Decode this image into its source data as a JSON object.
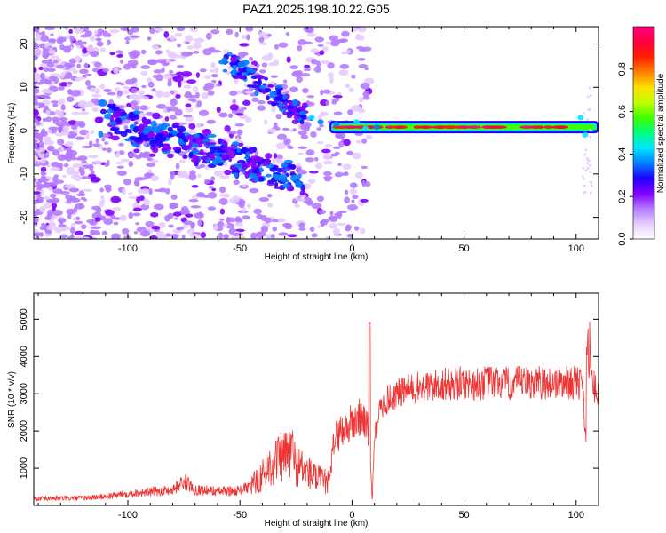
{
  "title": "PAZ1.2025.198.10.22.G05",
  "chart_data": [
    {
      "type": "heatmap",
      "xlabel": "Height of straight line (km)",
      "ylabel": "Frequency (Hz)",
      "xlim": [
        -142,
        110
      ],
      "ylim": [
        -25,
        24
      ],
      "xticks": [
        -100,
        -50,
        0,
        50,
        100
      ],
      "yticks": [
        -20,
        -10,
        0,
        10,
        20
      ],
      "colorbar": {
        "label": "Normalized spectral amplitude",
        "range": [
          0,
          1
        ],
        "ticks": [
          "0.0",
          "0.2",
          "0.4",
          "0.6",
          "0.8"
        ],
        "colors": [
          "#ffffff",
          "#e6ccff",
          "#b57bff",
          "#8000ff",
          "#2000ff",
          "#0080ff",
          "#00e5ff",
          "#00ff80",
          "#40ff00",
          "#c0ff00",
          "#ffe000",
          "#ff8000",
          "#ff2000",
          "#ff0040",
          "#ff0080"
        ]
      },
      "features": [
        {
          "name": "tone",
          "x_range": [
            -10,
            110
          ],
          "frequency": 0.8
        },
        {
          "name": "upper branch",
          "x_start": -55,
          "f_start": 16,
          "x_end": -20,
          "f_end": 3
        },
        {
          "name": "lower branch",
          "x_start": -110,
          "f_start": 3,
          "x_end": -25,
          "f_end": -11
        }
      ]
    },
    {
      "type": "line",
      "xlabel": "Height of straight line (km)",
      "ylabel": "SNR (10 * v/v)",
      "xlim": [
        -142,
        110
      ],
      "ylim": [
        0,
        5700
      ],
      "xticks": [
        -100,
        -50,
        0,
        50,
        100
      ],
      "yticks": [
        1000,
        2000,
        3000,
        4000,
        5000
      ],
      "color": "#ee3333",
      "x": [
        -142,
        -130,
        -120,
        -110,
        -100,
        -90,
        -80,
        -75,
        -70,
        -60,
        -50,
        -45,
        -40,
        -35,
        -30,
        -27,
        -25,
        -20,
        -15,
        -10,
        -8,
        -5,
        0,
        5,
        8,
        9,
        10,
        12,
        15,
        20,
        25,
        30,
        35,
        40,
        45,
        50,
        55,
        60,
        65,
        70,
        75,
        80,
        85,
        90,
        95,
        100,
        103,
        104,
        105,
        106,
        107,
        110
      ],
      "y": [
        180,
        190,
        200,
        240,
        320,
        360,
        420,
        650,
        430,
        380,
        400,
        520,
        800,
        1200,
        1300,
        1500,
        1100,
        900,
        700,
        600,
        1800,
        2000,
        2200,
        2400,
        1800,
        100,
        1800,
        2500,
        2800,
        3000,
        3100,
        3150,
        3200,
        3250,
        3250,
        3300,
        3250,
        3300,
        3300,
        3250,
        3300,
        3300,
        3300,
        3300,
        3300,
        3300,
        3300,
        2000,
        1500,
        4500,
        3200,
        3100
      ]
    }
  ]
}
